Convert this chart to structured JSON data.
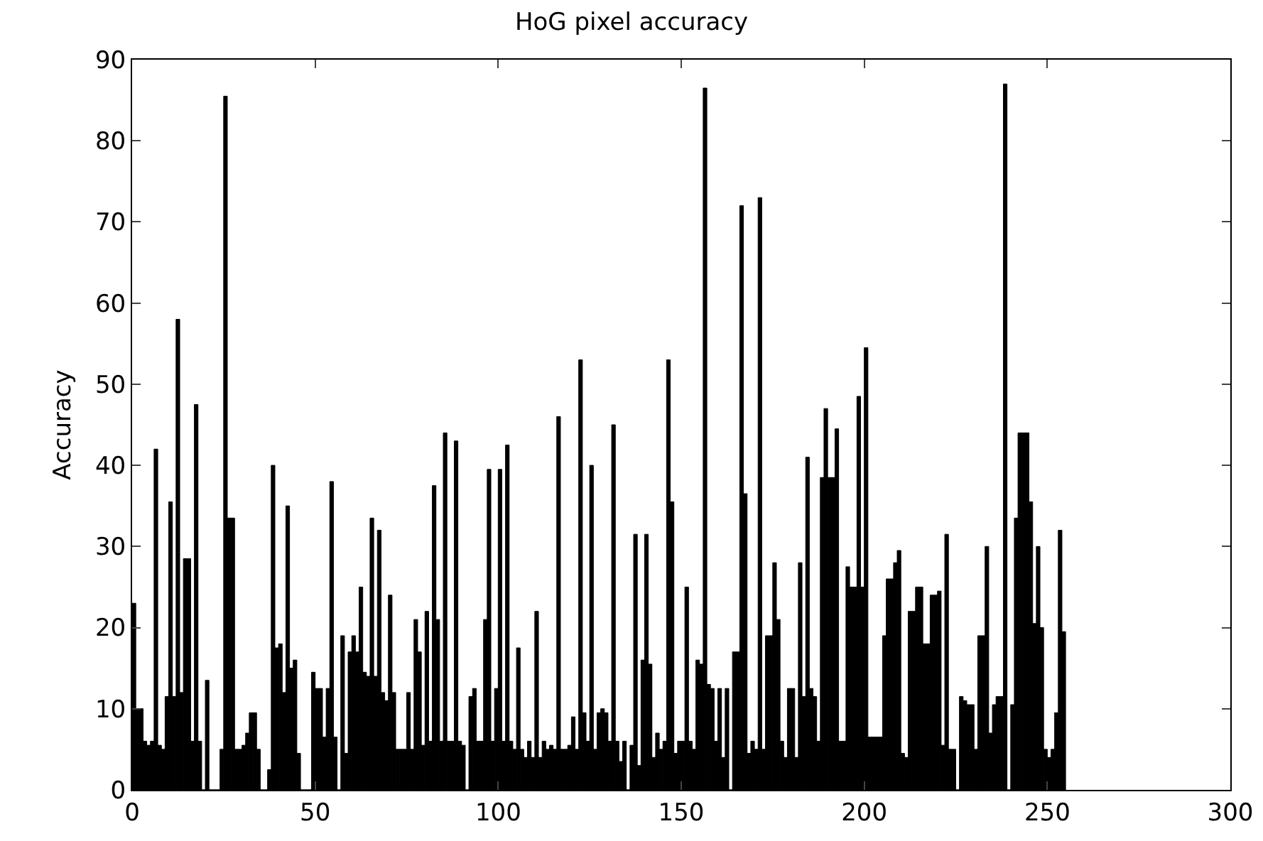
{
  "chart_data": {
    "type": "bar",
    "title": "HoG pixel accuracy",
    "ylabel": "Accuracy",
    "color": "#000000",
    "x": [
      0,
      1,
      2,
      3,
      4,
      5,
      6,
      7,
      8,
      9,
      10,
      11,
      12,
      13,
      14,
      15,
      16,
      17,
      18,
      19,
      20,
      21,
      22,
      23,
      24,
      25,
      26,
      27,
      28,
      29,
      30,
      31,
      32,
      33,
      34,
      35,
      36,
      37,
      38,
      39,
      40,
      41,
      42,
      43,
      44,
      45,
      46,
      47,
      48,
      49,
      50,
      51,
      52,
      53,
      54,
      55,
      56,
      57,
      58,
      59,
      60,
      61,
      62,
      63,
      64,
      65,
      66,
      67,
      68,
      69,
      70,
      71,
      72,
      73,
      74,
      75,
      76,
      77,
      78,
      79,
      80,
      81,
      82,
      83,
      84,
      85,
      86,
      87,
      88,
      89,
      90,
      91,
      92,
      93,
      94,
      95,
      96,
      97,
      98,
      99,
      100,
      101,
      102,
      103,
      104,
      105,
      106,
      107,
      108,
      109,
      110,
      111,
      112,
      113,
      114,
      115,
      116,
      117,
      118,
      119,
      120,
      121,
      122,
      123,
      124,
      125,
      126,
      127,
      128,
      129,
      130,
      131,
      132,
      133,
      134,
      135,
      136,
      137,
      138,
      139,
      140,
      141,
      142,
      143,
      144,
      145,
      146,
      147,
      148,
      149,
      150,
      151,
      152,
      153,
      154,
      155,
      156,
      157,
      158,
      159,
      160,
      161,
      162,
      163,
      164,
      165,
      166,
      167,
      168,
      169,
      170,
      171,
      172,
      173,
      174,
      175,
      176,
      177,
      178,
      179,
      180,
      181,
      182,
      183,
      184,
      185,
      186,
      187,
      188,
      189,
      190,
      191,
      192,
      193,
      194,
      195,
      196,
      197,
      198,
      199,
      200,
      201,
      202,
      203,
      204,
      205,
      206,
      207,
      208,
      209,
      210,
      211,
      212,
      213,
      214,
      215,
      216,
      217,
      218,
      219,
      220,
      221,
      222,
      223,
      224,
      225,
      226,
      227,
      228,
      229,
      230,
      231,
      232,
      233,
      234,
      235,
      236,
      237,
      238,
      239,
      240,
      241,
      242,
      243,
      244,
      245,
      246,
      247,
      248,
      249,
      250,
      251,
      252,
      253,
      254
    ],
    "values": [
      23,
      10,
      10,
      6,
      5.5,
      6,
      42,
      5.5,
      5,
      11.5,
      35.5,
      11.5,
      58,
      12,
      28.5,
      28.5,
      6,
      47.5,
      6,
      0,
      13.5,
      0,
      0,
      0,
      5,
      85.5,
      33.5,
      33.5,
      5,
      5,
      5.5,
      7,
      9.5,
      9.5,
      5,
      0,
      0,
      2.5,
      40,
      17.5,
      18,
      12,
      35,
      15,
      16,
      4.5,
      0,
      0,
      0,
      14.5,
      12.5,
      12.5,
      6.5,
      12.5,
      38,
      6.5,
      0,
      19,
      4.5,
      17,
      19,
      17,
      25,
      14.5,
      14,
      33.5,
      14,
      32,
      12,
      11,
      24,
      12,
      5,
      5,
      5,
      12,
      5,
      21,
      17,
      5.5,
      22,
      6,
      37.5,
      21,
      6,
      44,
      6,
      6,
      43,
      6,
      5.5,
      0,
      11.5,
      12.5,
      6,
      6,
      21,
      39.5,
      6,
      12.5,
      39.5,
      6,
      42.5,
      6,
      5,
      17.5,
      5,
      4,
      6,
      4,
      22,
      4,
      6,
      5,
      5.5,
      5,
      46,
      5,
      5,
      5.5,
      9,
      5,
      53,
      9.5,
      6,
      40,
      5,
      9.5,
      10,
      9.5,
      6,
      45,
      6,
      3.5,
      6,
      0,
      5.5,
      31.5,
      3,
      16,
      31.5,
      15.5,
      4,
      7,
      5,
      6,
      53,
      35.5,
      4.5,
      6,
      6,
      25,
      6,
      5,
      16,
      15.5,
      86.5,
      13,
      12.5,
      6,
      12.5,
      4,
      12.5,
      0,
      17,
      17,
      72,
      36.5,
      4.5,
      6,
      5,
      73,
      5,
      19,
      19,
      28,
      21,
      6,
      4,
      12.5,
      12.5,
      4,
      28,
      11.5,
      41,
      12.5,
      11.5,
      6,
      38.5,
      47,
      38.5,
      38.5,
      44.5,
      6,
      6,
      27.5,
      25,
      25,
      48.5,
      25,
      54.5,
      6.5,
      6.5,
      6.5,
      6.5,
      19,
      26,
      26,
      28,
      29.5,
      4.5,
      4,
      22,
      22,
      25,
      25,
      18,
      18,
      24,
      24,
      24.5,
      5.5,
      31.5,
      5,
      5,
      0,
      11.5,
      11,
      10.5,
      10.5,
      5,
      19,
      19,
      30,
      7,
      10.5,
      11.5,
      11.5,
      87,
      0,
      10.5,
      33.5,
      44,
      44,
      44,
      35.5,
      20.5,
      30,
      20,
      5,
      4,
      5,
      9.5,
      32,
      19.5
    ],
    "xlim": [
      0,
      300
    ],
    "xticks": [
      0,
      50,
      100,
      150,
      200,
      250,
      300
    ],
    "ylim": [
      0,
      90
    ],
    "yticks": [
      0,
      10,
      20,
      30,
      40,
      50,
      60,
      70,
      80,
      90
    ],
    "grid": false,
    "legend": false
  }
}
